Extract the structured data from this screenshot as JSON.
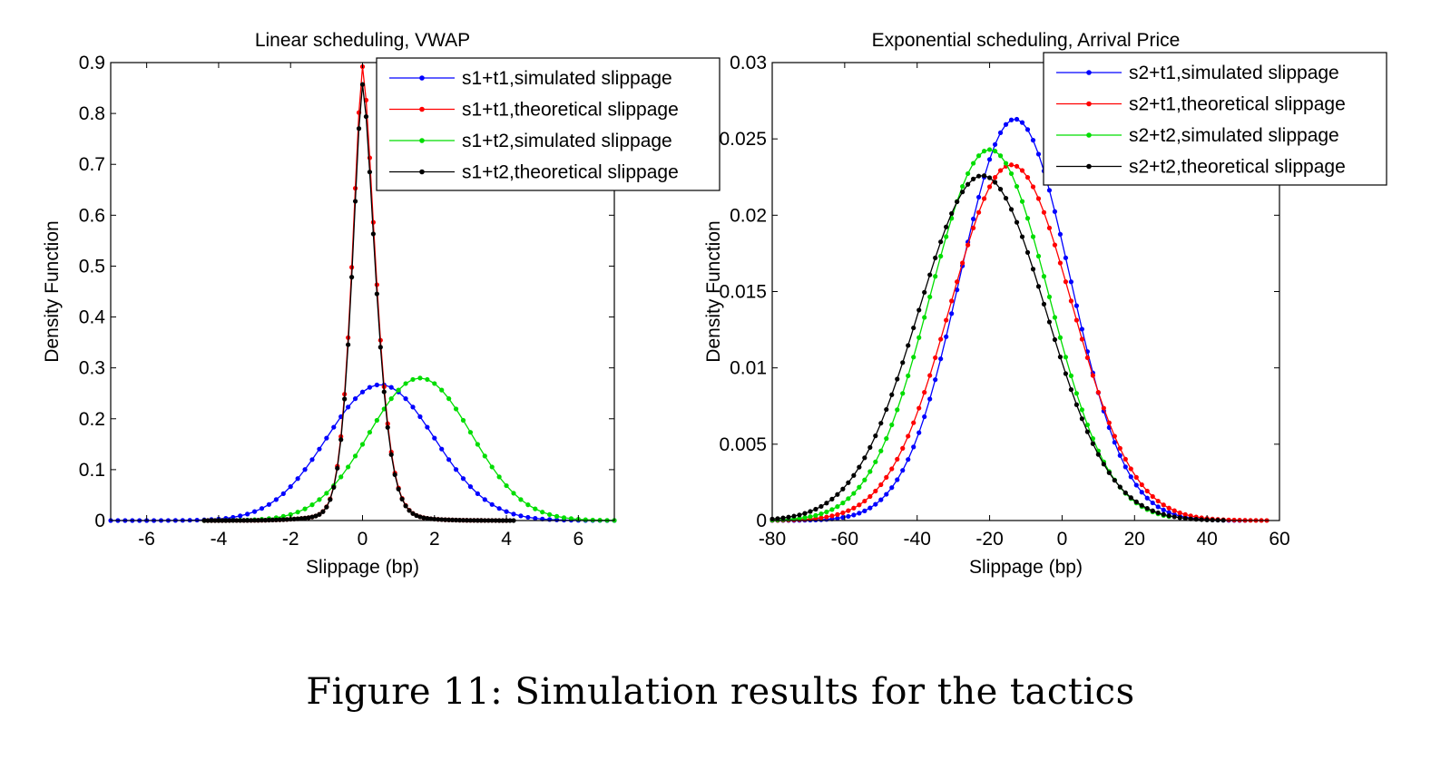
{
  "caption": "Figure 11: Simulation results for the tactics",
  "chart_data": [
    {
      "type": "line",
      "title": "Linear scheduling, VWAP",
      "xlabel": "Slippage (bp)",
      "ylabel": "Density Function",
      "xlim": [
        -7,
        7
      ],
      "ylim": [
        0,
        0.9
      ],
      "xticks": [
        "-6",
        "-4",
        "-2",
        "0",
        "2",
        "4",
        "6"
      ],
      "yticks": [
        "0",
        "0.1",
        "0.2",
        "0.3",
        "0.4",
        "0.5",
        "0.6",
        "0.7",
        "0.8",
        "0.9"
      ],
      "legend_position": "top-right",
      "grid": false,
      "series": [
        {
          "name": "s1+t1,simulated slippage",
          "color": "#0000ff",
          "shape": "gaussian",
          "mean": 0.5,
          "sd": 1.5,
          "peak": 0.267,
          "x_start": -7,
          "x_end": 7,
          "step": 0.2
        },
        {
          "name": "s1+t1,theoretical slippage",
          "color": "#ff0000",
          "shape": "spike",
          "mean": 0.0,
          "peak": 0.88,
          "x_start": -4.4,
          "x_end": 4.0,
          "step": 0.1
        },
        {
          "name": "s1+t2,simulated slippage",
          "color": "#00dd00",
          "shape": "gaussian",
          "mean": 1.6,
          "sd": 1.43,
          "peak": 0.28,
          "x_start": -4.4,
          "x_end": 7,
          "step": 0.2
        },
        {
          "name": "s1+t2,theoretical slippage",
          "color": "#000000",
          "shape": "spike",
          "mean": 0.0,
          "peak": 0.845,
          "x_start": -4.4,
          "x_end": 4.2,
          "step": 0.1
        }
      ]
    },
    {
      "type": "line",
      "title": "Exponential scheduling, Arrival Price",
      "xlabel": "Slippage (bp)",
      "ylabel": "Density Function",
      "xlim": [
        -80,
        60
      ],
      "ylim": [
        0,
        0.03
      ],
      "xticks": [
        "-80",
        "-60",
        "-40",
        "-20",
        "0",
        "20",
        "40",
        "60"
      ],
      "yticks": [
        "0",
        "0.005",
        "0.01",
        "0.015",
        "0.02",
        "0.025",
        "0.03"
      ],
      "legend_position": "top-right",
      "grid": false,
      "series": [
        {
          "name": "s2+t1,simulated slippage",
          "color": "#0000ff",
          "shape": "gaussian",
          "mean": -13,
          "sd": 15.2,
          "peak": 0.0263,
          "x_start": -80,
          "x_end": 50,
          "step": 1.5
        },
        {
          "name": "s2+t1,theoretical slippage",
          "color": "#ff0000",
          "shape": "gaussian",
          "mean": -14,
          "sd": 16.8,
          "peak": 0.0233,
          "x_start": -80,
          "x_end": 57,
          "step": 1.5
        },
        {
          "name": "s2+t2,simulated slippage",
          "color": "#00dd00",
          "shape": "gaussian",
          "mean": -20,
          "sd": 16.4,
          "peak": 0.0243,
          "x_start": -80,
          "x_end": 30,
          "step": 1.5
        },
        {
          "name": "s2+t2,theoretical slippage",
          "color": "#000000",
          "shape": "gaussian",
          "mean": -22,
          "sd": 17.6,
          "peak": 0.0226,
          "x_start": -80,
          "x_end": 45,
          "step": 1.5
        }
      ]
    }
  ]
}
